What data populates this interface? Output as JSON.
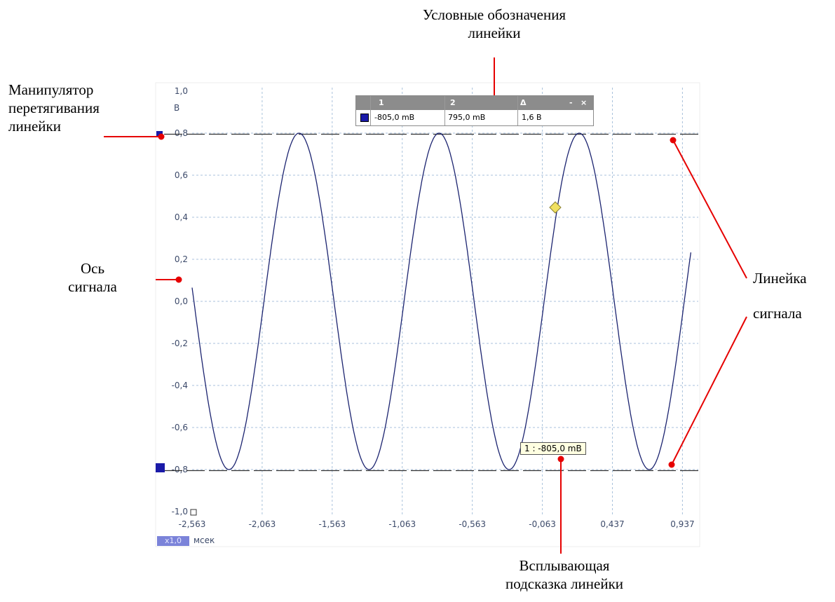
{
  "callouts": {
    "legend_title": [
      "Условные обозначения",
      "линейки"
    ],
    "drag_handle": [
      "Манипулятор",
      "перетягивания",
      "линейки"
    ],
    "signal_axis": [
      "Ось",
      "сигнала"
    ],
    "signal_ruler": [
      "Линейка",
      "сигнала"
    ],
    "popup_hint": [
      "Всплывающая",
      "подсказка линейки"
    ]
  },
  "y_axis": {
    "unit": "В",
    "ticks": [
      "1,0",
      "0,8",
      "0,6",
      "0,4",
      "0,2",
      "0,0",
      "-0,2",
      "-0,4",
      "-0,6",
      "-0,8",
      "-1,0"
    ]
  },
  "x_axis": {
    "ticks": [
      "-2,563",
      "-2,063",
      "-1,563",
      "-1,063",
      "-0,563",
      "-0,063",
      "0,437",
      "0,937"
    ],
    "unit": "мсек",
    "zoom": "x1,0"
  },
  "legend": {
    "headers": [
      "1",
      "2",
      "Δ"
    ],
    "window_controls": [
      "-",
      "×"
    ],
    "values": [
      "-805,0 mB",
      "795,0 mB",
      "1,6 B"
    ]
  },
  "tooltip": "1 : -805,0 mB",
  "chart_data": {
    "type": "line",
    "xlabel": "мсек",
    "ylabel": "В",
    "xlim": [
      -2.563,
      1.05
    ],
    "ylim": [
      -1.0,
      1.0
    ],
    "grid": true,
    "series": [
      {
        "color": "#1c2470",
        "amplitude": 0.8,
        "period_ms": 1.0,
        "peak_at_ms": -1.8,
        "x_range": [
          -2.563,
          0.937
        ]
      }
    ],
    "rulers": [
      {
        "value": 0.795,
        "color": "#333333",
        "style": "dashed"
      },
      {
        "value": -0.805,
        "color": "#333333",
        "style": "dashed"
      }
    ]
  },
  "colors": {
    "accent_red": "#e60000",
    "handle_blue": "#1a1aa8",
    "marker_yellow": "#f0e060"
  }
}
